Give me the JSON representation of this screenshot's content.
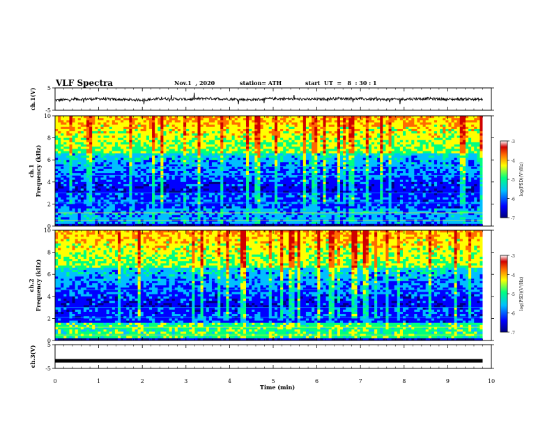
{
  "header": {
    "title": "VLF Spectra",
    "date": "Nov.1  , 2020",
    "station": "station= ATH",
    "start_ut": "start  UT  =   8  : 30 : 1"
  },
  "colors": {
    "colormap": [
      "#00007f",
      "#0000ff",
      "#00bfff",
      "#00ff80",
      "#ffff00",
      "#ff6a00",
      "#d00000",
      "#ffffff"
    ],
    "trace": "#000000",
    "axes": "#000000"
  },
  "chart_data": [
    {
      "type": "line",
      "name": "ch1-waveform",
      "ylabel": "ch.1(V)",
      "ylim": [
        -5,
        5
      ],
      "yticks": [
        "5",
        "-5"
      ],
      "xlim": [
        0,
        10
      ],
      "x": [
        0,
        0.5,
        1,
        1.5,
        2,
        2.5,
        3,
        3.5,
        4,
        4.5,
        5,
        5.5,
        6,
        6.5,
        7,
        7.5,
        8,
        8.5,
        9,
        9.5,
        9.8
      ],
      "y": [
        -0.5,
        -0.1,
        0.1,
        -0.2,
        -0.4,
        0.2,
        -0.1,
        0.3,
        0.0,
        -0.3,
        0.2,
        0.0,
        -0.1,
        0.3,
        0.1,
        -0.2,
        0.0,
        0.2,
        -0.1,
        0.0,
        -0.2
      ]
    },
    {
      "type": "heatmap",
      "name": "ch1-spectrogram",
      "ylabel": "ch.1\nFrequency (kHz)",
      "ylim": [
        0,
        10
      ],
      "yticks": [
        "10",
        "8",
        "6",
        "4",
        "2",
        "0"
      ],
      "xlim": [
        0,
        10
      ],
      "colorbar": {
        "label": "log(PSD)(V²/Hz)",
        "range": [
          -7,
          -3
        ],
        "ticks": [
          "-3",
          "-4",
          "-5",
          "-6",
          "-7"
        ]
      }
    },
    {
      "type": "heatmap",
      "name": "ch2-spectrogram",
      "ylabel": "ch.2\nFrequency (kHz)",
      "ylim": [
        0,
        10
      ],
      "yticks": [
        "10",
        "8",
        "6",
        "4",
        "2",
        "0"
      ],
      "xlim": [
        0,
        10
      ],
      "colorbar": {
        "label": "log(PSD)(V²/Hz)",
        "range": [
          -7,
          -3
        ],
        "ticks": [
          "-3",
          "-4",
          "-5",
          "-6",
          "-7"
        ]
      }
    },
    {
      "type": "line",
      "name": "ch3-waveform",
      "ylabel": "ch.3(V)",
      "ylim": [
        -5,
        5
      ],
      "yticks": [
        "5",
        "-5"
      ],
      "xlim": [
        0,
        10
      ],
      "x": [
        0,
        9.8
      ],
      "y": [
        -1.8,
        -1.8
      ]
    }
  ],
  "xaxis": {
    "label": "Time  (min)",
    "range": [
      0,
      10
    ],
    "ticks": [
      "0",
      "1",
      "2",
      "3",
      "4",
      "5",
      "6",
      "7",
      "8",
      "9",
      "10"
    ]
  }
}
